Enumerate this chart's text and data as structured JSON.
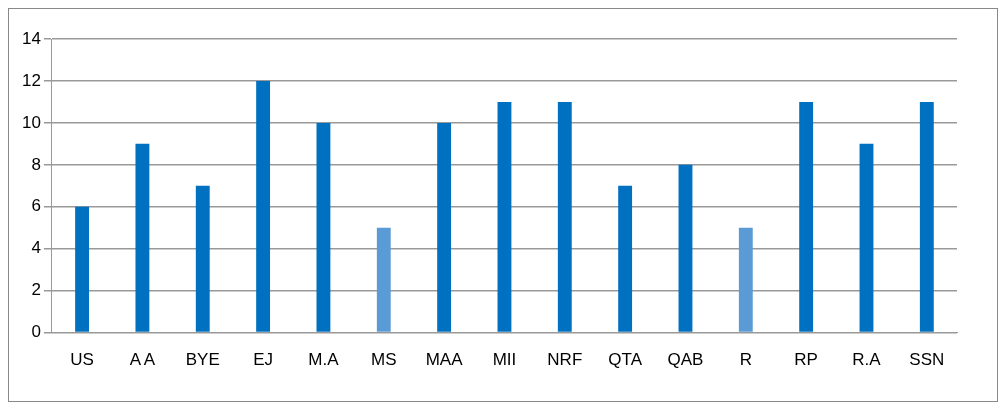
{
  "chart_data": {
    "type": "bar",
    "categories": [
      "US",
      "A A",
      "BYE",
      "EJ",
      "M.A",
      "MS",
      "MAA",
      "MII",
      "NRF",
      "QTA",
      "QAB",
      "R",
      "RP",
      "R.A",
      "SSN"
    ],
    "values": [
      6,
      9,
      7,
      12,
      10,
      5,
      10,
      11,
      11,
      7,
      8,
      5,
      11,
      9,
      11
    ],
    "colors": [
      "#0070c0",
      "#0070c0",
      "#0070c0",
      "#0070c0",
      "#0070c0",
      "#5b9bd5",
      "#0070c0",
      "#0070c0",
      "#0070c0",
      "#0070c0",
      "#0070c0",
      "#5b9bd5",
      "#0070c0",
      "#0070c0",
      "#0070c0"
    ],
    "ylim": [
      0,
      14
    ],
    "yticks": [
      0,
      2,
      4,
      6,
      8,
      10,
      12,
      14
    ],
    "grid": "y",
    "legend": false
  }
}
